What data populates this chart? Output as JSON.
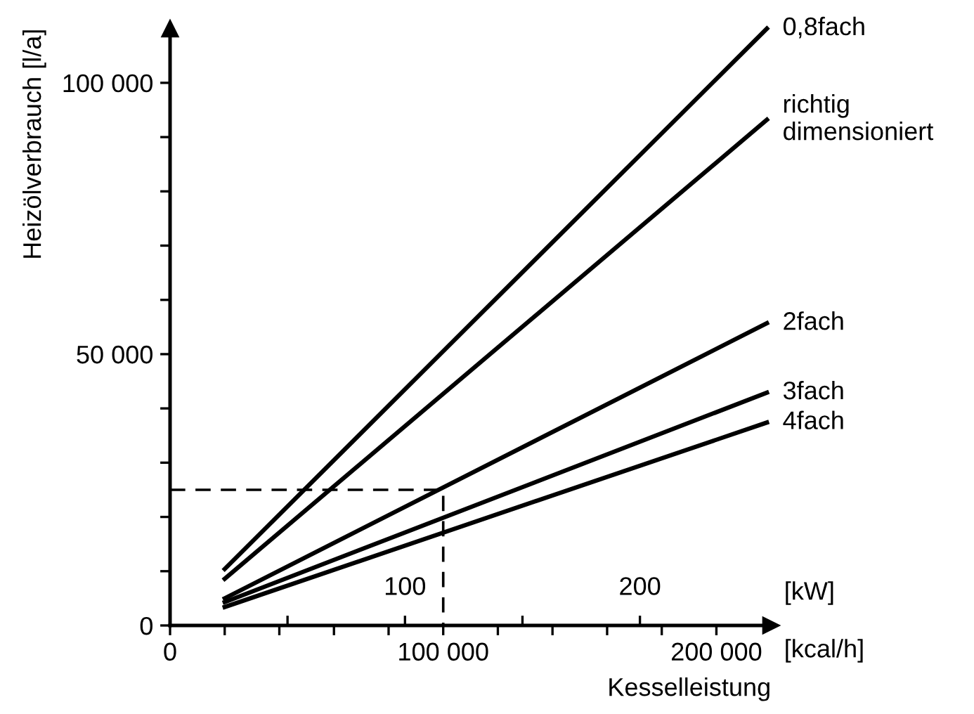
{
  "chart_data": {
    "type": "line",
    "xlabel": "Kesselleistung",
    "ylabel": "Heizölverbrauch [l/a]",
    "xlim": [
      0,
      220000
    ],
    "ylim": [
      0,
      110000
    ],
    "xticks": [
      0,
      {
        "value": 20000,
        "label": null
      },
      {
        "value": 40000,
        "label": null
      },
      {
        "value": 60000,
        "label": null
      },
      {
        "value": 80000,
        "label": null
      },
      {
        "value": 100000,
        "label": "100 000"
      },
      {
        "value": 120000,
        "label": null
      },
      {
        "value": 140000,
        "label": null
      },
      {
        "value": 160000,
        "label": null
      },
      {
        "value": 180000,
        "label": null
      },
      {
        "value": 200000,
        "label": "200 000"
      }
    ],
    "yticks": [
      0,
      {
        "value": 10000,
        "label": null
      },
      {
        "value": 20000,
        "label": null
      },
      {
        "value": 30000,
        "label": null
      },
      {
        "value": 40000,
        "label": null
      },
      {
        "value": 50000,
        "label": "50 000"
      },
      {
        "value": 60000,
        "label": null
      },
      {
        "value": 70000,
        "label": null
      },
      {
        "value": 80000,
        "label": null
      },
      {
        "value": 90000,
        "label": null
      },
      {
        "value": 100000,
        "label": "100 000"
      }
    ],
    "x2lim": [
      0,
      255.8
    ],
    "x2ticks": [
      {
        "value": 50,
        "label": null
      },
      100,
      {
        "value": 150,
        "label": null
      },
      200
    ],
    "annotations": [
      "[kW]",
      "[kcal/h]"
    ],
    "grid": false,
    "legend": false,
    "marker": "none",
    "series": [
      {
        "name": "0,8fach",
        "color": "#000000",
        "x": [
          20000,
          218500
        ],
        "values": [
          10400,
          110000
        ]
      },
      {
        "name": "richtig\ndimensioniert",
        "color": "#000000",
        "x": [
          20000,
          218500
        ],
        "values": [
          8600,
          93200
        ]
      },
      {
        "name": "2fach",
        "color": "#000000",
        "x": [
          20000,
          218500
        ],
        "values": [
          5000,
          55700
        ]
      },
      {
        "name": "3fach",
        "color": "#000000",
        "x": [
          20000,
          218500
        ],
        "values": [
          4300,
          42900
        ]
      },
      {
        "name": "4fach",
        "color": "#000000",
        "x": [
          20000,
          218500
        ],
        "values": [
          3400,
          37400
        ]
      },
      {
        "color": "#000000",
        "line_style": "dashed",
        "x": [
          0,
          100000,
          100000
        ],
        "values": [
          25000,
          25000,
          0
        ]
      }
    ]
  }
}
